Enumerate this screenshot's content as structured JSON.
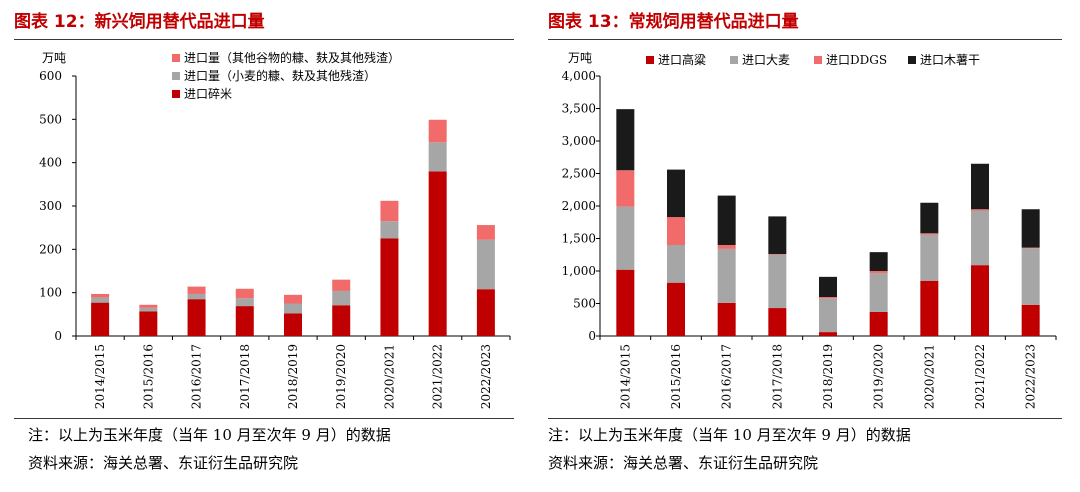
{
  "left": {
    "title": "图表 12：新兴饲用替代品进口量",
    "note": "注：以上为玉米年度（当年 10 月至次年 9 月）的数据",
    "source": "资料来源：海关总署、东证衍生品研究院"
  },
  "right": {
    "title": "图表 13：常规饲用替代品进口量",
    "note": "注：以上为玉米年度（当年 10 月至次年 9 月）的数据",
    "source": "资料来源：海关总署、东证衍生品研究院"
  },
  "chart_data": [
    {
      "type": "bar",
      "stacked": true,
      "title": "图表 12：新兴饲用替代品进口量",
      "ylabel": "万吨",
      "ylim": [
        0,
        600
      ],
      "yticks": [
        0,
        100,
        200,
        300,
        400,
        500,
        600
      ],
      "ytick_labels": [
        "0",
        "100",
        "200",
        "300",
        "400",
        "500",
        "600"
      ],
      "grid": false,
      "legend_position": "top-left",
      "categories": [
        "2014/2015",
        "2015/2016",
        "2016/2017",
        "2017/2018",
        "2018/2019",
        "2019/2020",
        "2020/2021",
        "2021/2022",
        "2022/2023"
      ],
      "series": [
        {
          "name": "进口碎米",
          "color": "#C00000",
          "values": [
            77,
            57,
            85,
            69,
            52,
            71,
            225,
            380,
            108
          ]
        },
        {
          "name": "进口量（小麦的糠、麸及其他残渣）",
          "color": "#A6A6A6",
          "values": [
            12,
            8,
            12,
            18,
            23,
            33,
            40,
            67,
            114
          ]
        },
        {
          "name": "进口量（其他谷物的糠、麸及其他残渣）",
          "color": "#F26B6B",
          "values": [
            8,
            7,
            17,
            22,
            20,
            26,
            47,
            52,
            34
          ]
        }
      ],
      "legend_order": [
        2,
        1,
        0
      ]
    },
    {
      "type": "bar",
      "stacked": true,
      "title": "图表 13：常规饲用替代品进口量",
      "ylabel": "万吨",
      "ylim": [
        0,
        4000
      ],
      "yticks": [
        0,
        500,
        1000,
        1500,
        2000,
        2500,
        3000,
        3500,
        4000
      ],
      "ytick_labels": [
        "0",
        "500",
        "1,000",
        "1,500",
        "2,000",
        "2,500",
        "3,000",
        "3,500",
        "4,000"
      ],
      "grid": false,
      "legend_position": "top",
      "categories": [
        "2014/2015",
        "2015/2016",
        "2016/2017",
        "2017/2018",
        "2018/2019",
        "2019/2020",
        "2020/2021",
        "2021/2022",
        "2022/2023"
      ],
      "series": [
        {
          "name": "进口高粱",
          "color": "#C00000",
          "values": [
            1020,
            820,
            510,
            430,
            60,
            370,
            850,
            1090,
            480
          ]
        },
        {
          "name": "进口大麦",
          "color": "#A6A6A6",
          "values": [
            970,
            580,
            830,
            820,
            520,
            600,
            710,
            840,
            870
          ]
        },
        {
          "name": "进口DDGS",
          "color": "#F26B6B",
          "values": [
            560,
            430,
            60,
            10,
            20,
            30,
            20,
            20,
            10
          ]
        },
        {
          "name": "进口木薯干",
          "color": "#1A1A1A",
          "values": [
            940,
            730,
            760,
            580,
            310,
            290,
            470,
            700,
            590
          ]
        }
      ],
      "legend_order": [
        0,
        1,
        2,
        3
      ]
    }
  ]
}
